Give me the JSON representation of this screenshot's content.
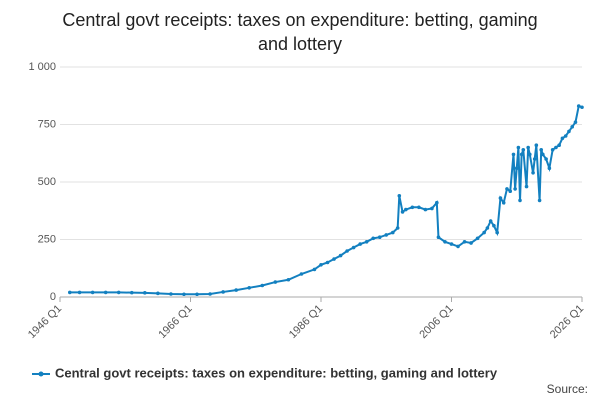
{
  "chart_data": {
    "type": "line",
    "title": "Central govt receipts: taxes on expenditure: betting, gaming and lottery",
    "source": "Source:",
    "x": [
      "1947 Q3",
      "1949 Q1",
      "1951 Q1",
      "1953 Q1",
      "1955 Q1",
      "1957 Q1",
      "1959 Q1",
      "1961 Q1",
      "1963 Q1",
      "1965 Q1",
      "1967 Q1",
      "1969 Q1",
      "1971 Q1",
      "1973 Q1",
      "1975 Q1",
      "1977 Q1",
      "1979 Q1",
      "1981 Q1",
      "1983 Q1",
      "1985 Q1",
      "1986 Q1",
      "1987 Q1",
      "1988 Q1",
      "1989 Q1",
      "1990 Q1",
      "1991 Q1",
      "1992 Q1",
      "1993 Q1",
      "1994 Q1",
      "1995 Q1",
      "1996 Q1",
      "1997 Q1",
      "1997 Q4",
      "1998 Q1",
      "1998 Q3",
      "1999 Q1",
      "2000 Q1",
      "2001 Q1",
      "2002 Q1",
      "2003 Q1",
      "2003 Q4",
      "2004 Q1",
      "2005 Q1",
      "2006 Q1",
      "2007 Q1",
      "2008 Q1",
      "2009 Q1",
      "2010 Q1",
      "2011 Q1",
      "2011 Q3",
      "2012 Q1",
      "2012 Q3",
      "2013 Q1",
      "2013 Q3",
      "2014 Q1",
      "2014 Q3",
      "2015 Q1",
      "2015 Q3",
      "2015 Q4",
      "2016 Q1",
      "2016 Q2",
      "2016 Q3",
      "2016 Q4",
      "2017 Q1",
      "2017 Q3",
      "2017 Q4",
      "2018 Q1",
      "2018 Q3",
      "2018 Q4",
      "2019 Q1",
      "2019 Q3",
      "2019 Q4",
      "2020 Q1",
      "2020 Q3",
      "2021 Q1",
      "2021 Q3",
      "2022 Q1",
      "2022 Q3",
      "2023 Q1",
      "2023 Q3",
      "2024 Q1",
      "2024 Q3",
      "2025 Q1",
      "2025 Q3",
      "2026 Q1"
    ],
    "series": [
      {
        "name": "Central govt receipts: taxes on expenditure: betting, gaming and lottery",
        "color": "#1380c0",
        "values": [
          20,
          20,
          20,
          20,
          20,
          19,
          18,
          16,
          13,
          12,
          12,
          13,
          22,
          30,
          40,
          50,
          65,
          75,
          100,
          120,
          140,
          150,
          165,
          180,
          200,
          215,
          230,
          240,
          255,
          260,
          270,
          280,
          300,
          440,
          370,
          380,
          390,
          390,
          380,
          385,
          410,
          260,
          240,
          230,
          220,
          240,
          235,
          255,
          280,
          300,
          330,
          310,
          280,
          430,
          410,
          470,
          460,
          620,
          470,
          560,
          650,
          420,
          620,
          640,
          480,
          650,
          620,
          540,
          600,
          660,
          420,
          640,
          620,
          600,
          560,
          640,
          650,
          660,
          690,
          700,
          720,
          740,
          760,
          830,
          825
        ]
      }
    ],
    "xlim": [
      "1946 Q1",
      "2026 Q1"
    ],
    "xticks": [
      "1946 Q1",
      "1966 Q1",
      "1986 Q1",
      "2006 Q1",
      "2026 Q1"
    ],
    "ylim": [
      0,
      1000
    ],
    "yticks": [
      0,
      250,
      500,
      750,
      {
        "value": 1000,
        "label": "1 000"
      }
    ],
    "grid": true
  }
}
